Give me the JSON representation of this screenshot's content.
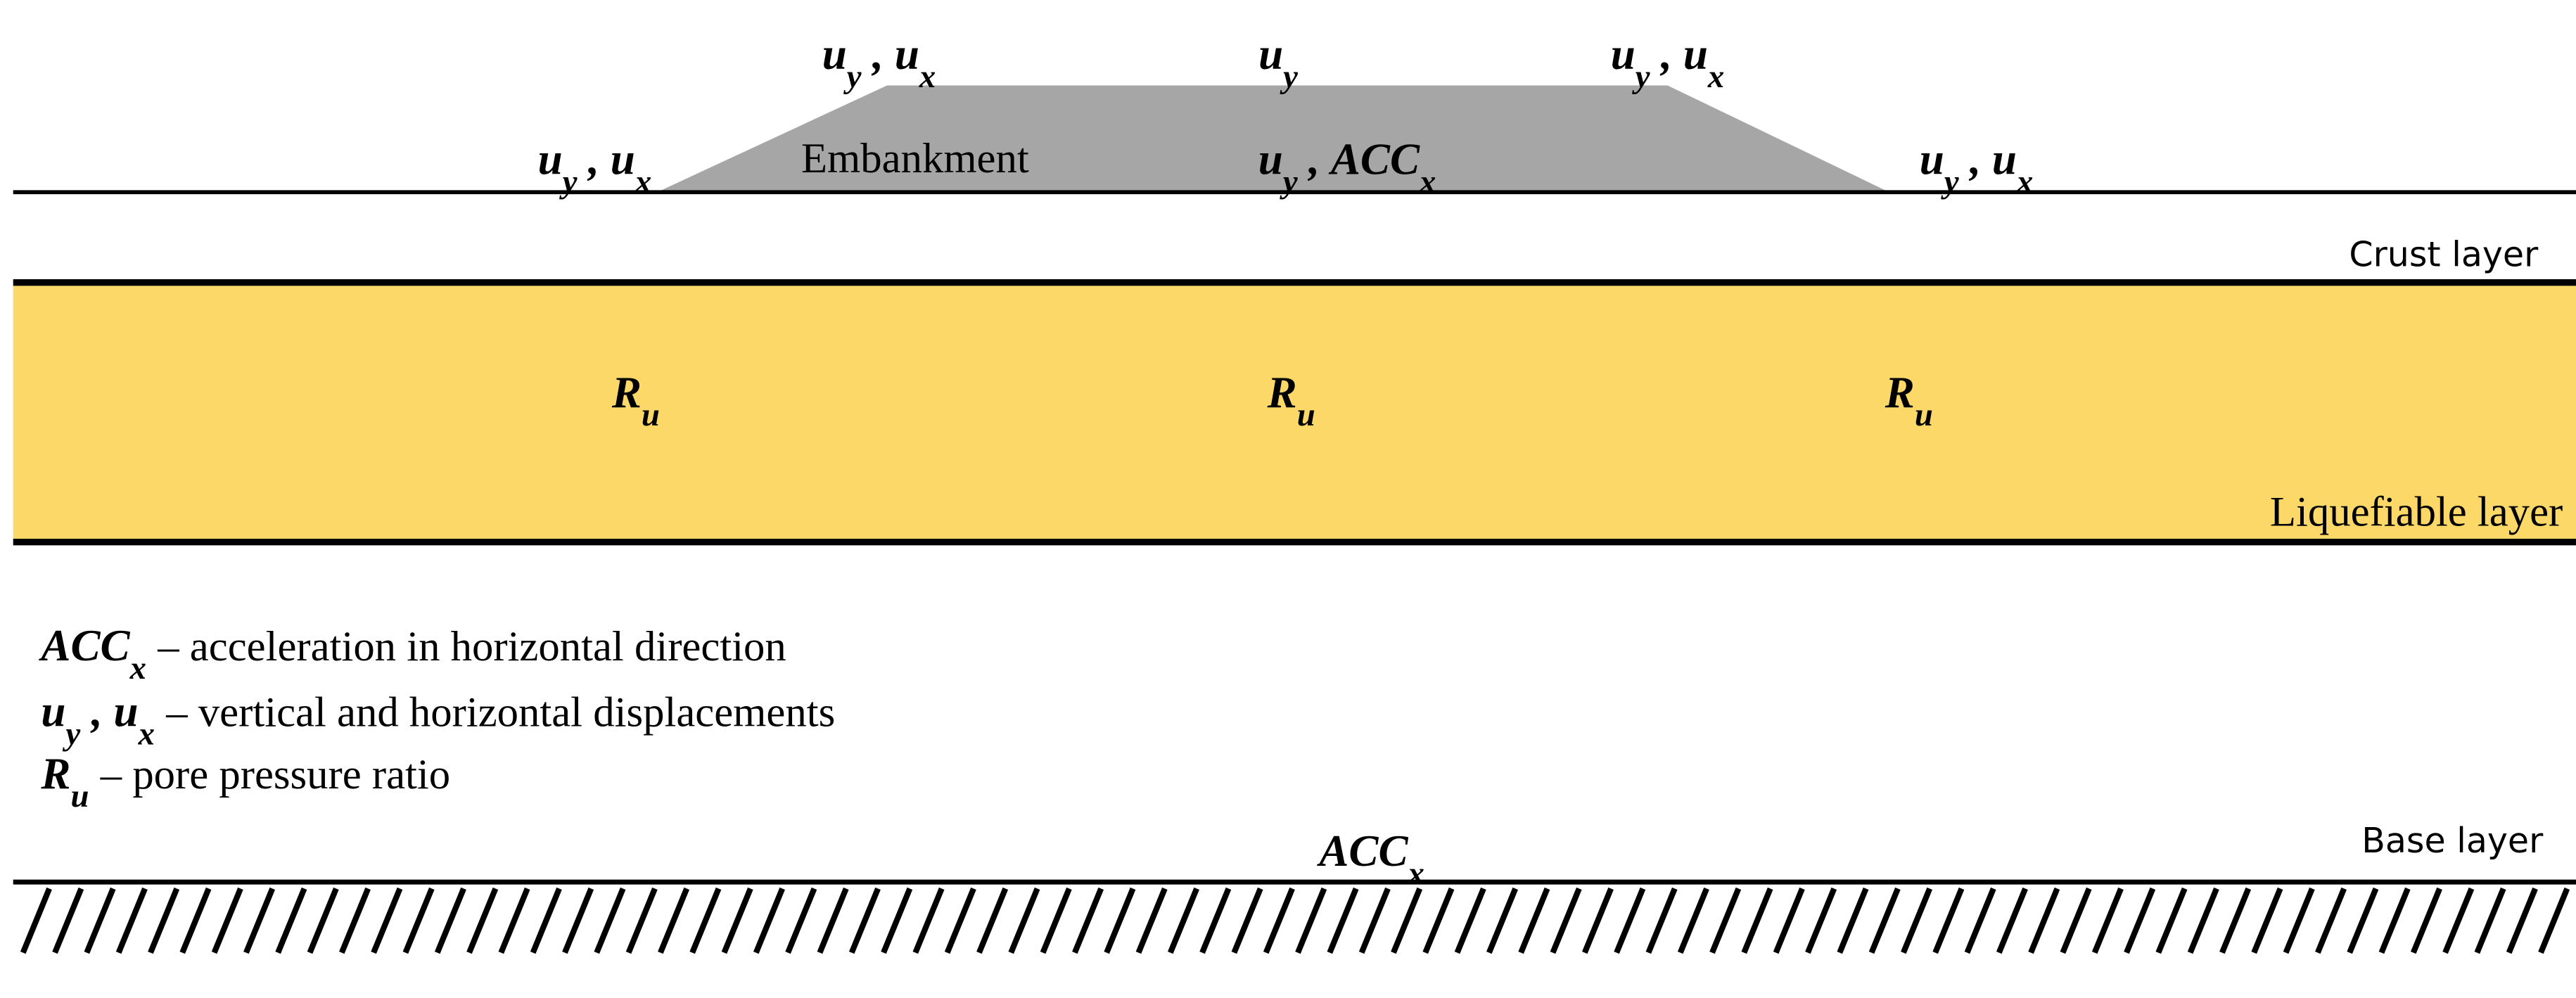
{
  "diagram": {
    "embankment": "Embankment",
    "layers": [
      "Crust layer",
      "Liquefiable layer",
      "Base layer"
    ],
    "labels": [
      {
        "parts": [
          {
            "main": "u",
            "sub": "y"
          },
          ", ",
          {
            "main": "u",
            "sub": "x"
          }
        ]
      },
      {
        "parts": [
          {
            "main": "u",
            "sub": "y"
          }
        ]
      },
      {
        "parts": [
          {
            "main": "u",
            "sub": "y"
          },
          ", ",
          {
            "main": "u",
            "sub": "x"
          }
        ]
      },
      {
        "parts": [
          {
            "main": "u",
            "sub": "y"
          },
          ", ",
          {
            "main": "u",
            "sub": "x"
          }
        ]
      },
      {
        "parts": [
          {
            "main": "u",
            "sub": "y"
          },
          ", ",
          {
            "main": "ACC",
            "sub": "x"
          }
        ]
      },
      {
        "parts": [
          {
            "main": "u",
            "sub": "y"
          },
          ", ",
          {
            "main": "u",
            "sub": "x"
          }
        ]
      },
      {
        "parts": [
          {
            "main": "R",
            "sub": "u"
          }
        ]
      },
      {
        "parts": [
          {
            "main": "R",
            "sub": "u"
          }
        ]
      },
      {
        "parts": [
          {
            "main": "R",
            "sub": "u"
          }
        ]
      },
      {
        "parts": [
          {
            "main": "ACC",
            "sub": "x"
          }
        ]
      }
    ],
    "legend": [
      {
        "term": [
          {
            "main": "ACC",
            "sub": "x"
          }
        ],
        "text": "– acceleration in horizontal direction"
      },
      {
        "term": [
          {
            "main": "u",
            "sub": "y"
          },
          ", ",
          {
            "main": "u",
            "sub": "x"
          }
        ],
        "text": "– vertical and horizontal displacements"
      },
      {
        "term": [
          {
            "main": "R",
            "sub": "u"
          }
        ],
        "text": "– pore pressure ratio"
      }
    ]
  }
}
